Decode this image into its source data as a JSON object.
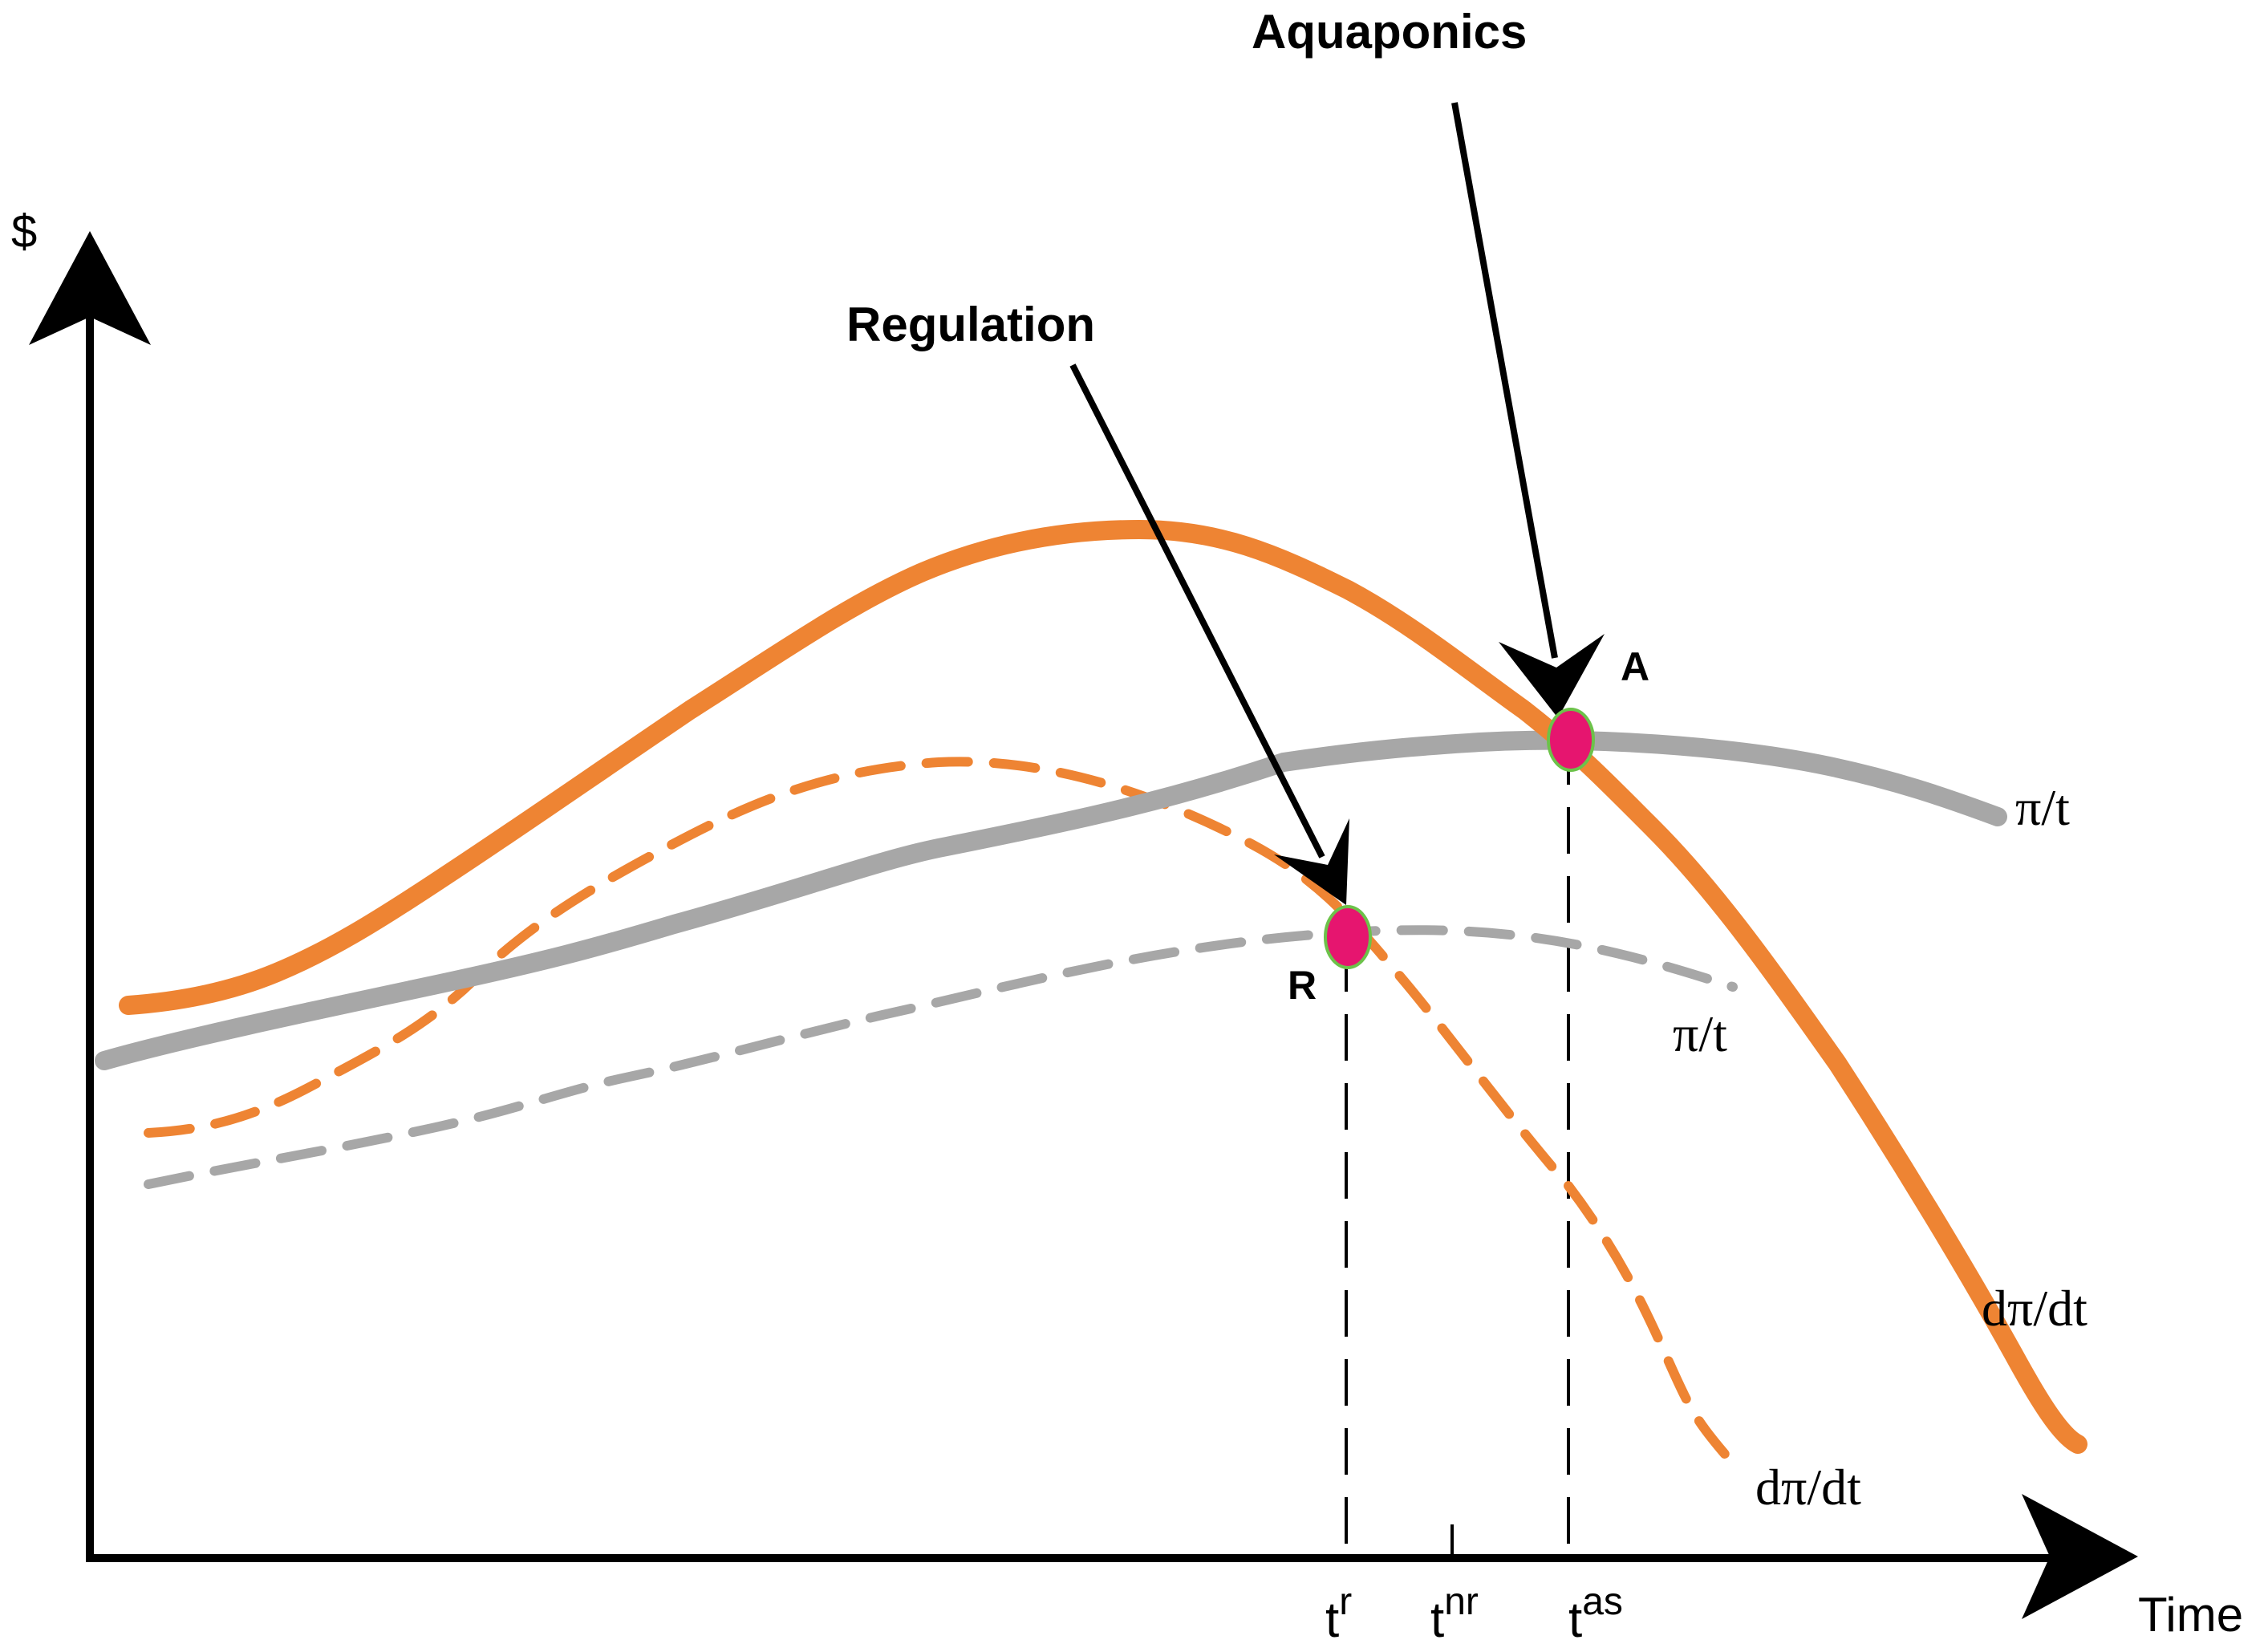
{
  "axes": {
    "y_label": "$",
    "x_label": "Time"
  },
  "callouts": {
    "aquaponics": "Aquaponics",
    "regulation": "Regulation"
  },
  "points": {
    "a": "A",
    "r": "R"
  },
  "curve_labels": {
    "avg_profit_solid": "π/t",
    "marginal_profit_solid": "dπ/dt",
    "avg_profit_dashed": "π/t",
    "marginal_profit_dashed": "dπ/dt"
  },
  "time_ticks": {
    "tr": {
      "base": "t",
      "sup": "r"
    },
    "tnr": {
      "base": "t",
      "sup": "nr"
    },
    "tas": {
      "base": "t",
      "sup": "as"
    }
  },
  "colors": {
    "orange": "#ee8433",
    "gray": "#a7a7a7",
    "point_fill": "#e6156f",
    "point_stroke": "#6cc24a",
    "axis": "#000000"
  }
}
